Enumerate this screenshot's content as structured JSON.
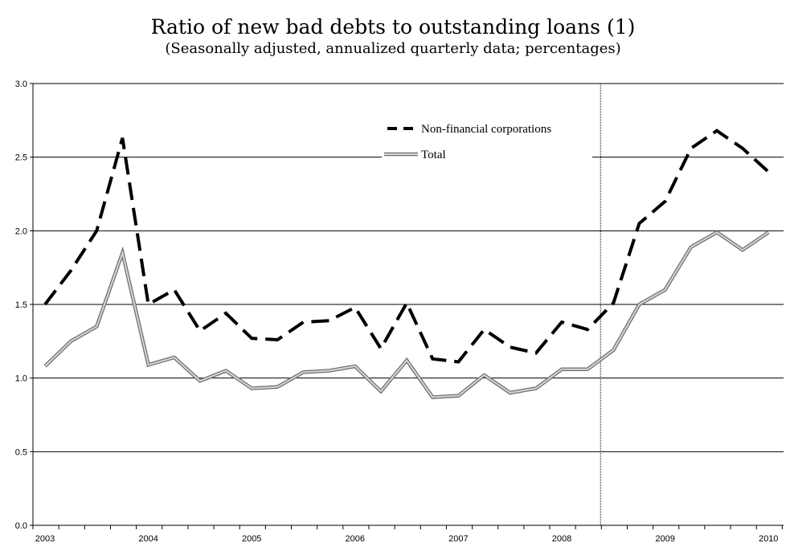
{
  "chart_data": {
    "type": "line",
    "title": "Ratio of new bad debts to outstanding loans (1)",
    "subtitle": "(Seasonally adjusted, annualized quarterly data; percentages)",
    "xlabel": "",
    "ylabel": "",
    "ylim": [
      0.0,
      3.0
    ],
    "yticks": [
      "0.0",
      "0.5",
      "1.0",
      "1.5",
      "2.0",
      "2.5",
      "3.0"
    ],
    "xtick_labels": [
      "2003",
      "2004",
      "2005",
      "2006",
      "2007",
      "2008",
      "2009",
      "2010"
    ],
    "grid": true,
    "legend_position": "top-right",
    "vertical_marker_after_quarter": "2008 Q2",
    "series": [
      {
        "name": "Non-financial corporations",
        "style": "dashed",
        "color": "#000000",
        "values": [
          1.5,
          1.73,
          2.0,
          2.63,
          1.5,
          1.6,
          1.32,
          1.44,
          1.27,
          1.26,
          1.38,
          1.39,
          1.48,
          1.2,
          1.51,
          1.13,
          1.11,
          1.33,
          1.21,
          1.17,
          1.38,
          1.33,
          1.51,
          2.05,
          2.2,
          2.56,
          2.68,
          2.56,
          2.4
        ]
      },
      {
        "name": "Total",
        "style": "solid",
        "color": "#a0a0a0",
        "values": [
          1.08,
          1.25,
          1.35,
          1.85,
          1.09,
          1.14,
          0.98,
          1.05,
          0.93,
          0.94,
          1.04,
          1.05,
          1.08,
          0.91,
          1.12,
          0.87,
          0.88,
          1.02,
          0.9,
          0.93,
          1.06,
          1.06,
          1.19,
          1.5,
          1.6,
          1.89,
          1.99,
          1.87,
          1.99
        ]
      }
    ]
  }
}
